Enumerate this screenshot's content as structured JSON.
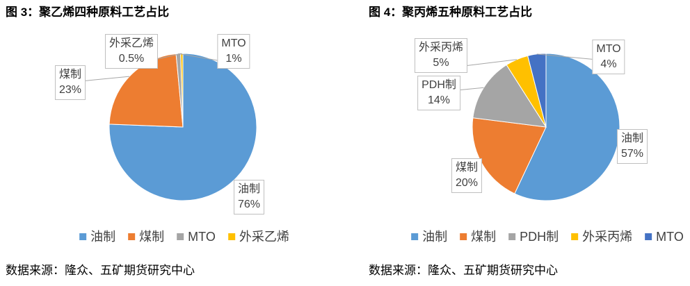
{
  "chart_data": [
    {
      "type": "pie",
      "title": "图 3：聚乙烯四种原料工艺占比",
      "categories": [
        "油制",
        "煤制",
        "MTO",
        "外采乙烯"
      ],
      "values": [
        76,
        23,
        1,
        0.5
      ],
      "data_labels": [
        "76%",
        "23%",
        "1%",
        "0.5%"
      ],
      "colors": [
        "#5B9BD5",
        "#ED7D31",
        "#A5A5A5",
        "#FFC000"
      ],
      "legend": "bottom",
      "source": "数据来源：隆众、五矿期货研究中心"
    },
    {
      "type": "pie",
      "title": "图 4：聚丙烯五种原料工艺占比",
      "categories": [
        "油制",
        "煤制",
        "PDH制",
        "外采丙烯",
        "MTO"
      ],
      "values": [
        57,
        20,
        14,
        5,
        4
      ],
      "data_labels": [
        "57%",
        "20%",
        "14%",
        "5%",
        "4%"
      ],
      "colors": [
        "#5B9BD5",
        "#ED7D31",
        "#A5A5A5",
        "#FFC000",
        "#4472C4"
      ],
      "legend": "bottom",
      "source": "数据来源：隆众、五矿期货研究中心"
    }
  ]
}
